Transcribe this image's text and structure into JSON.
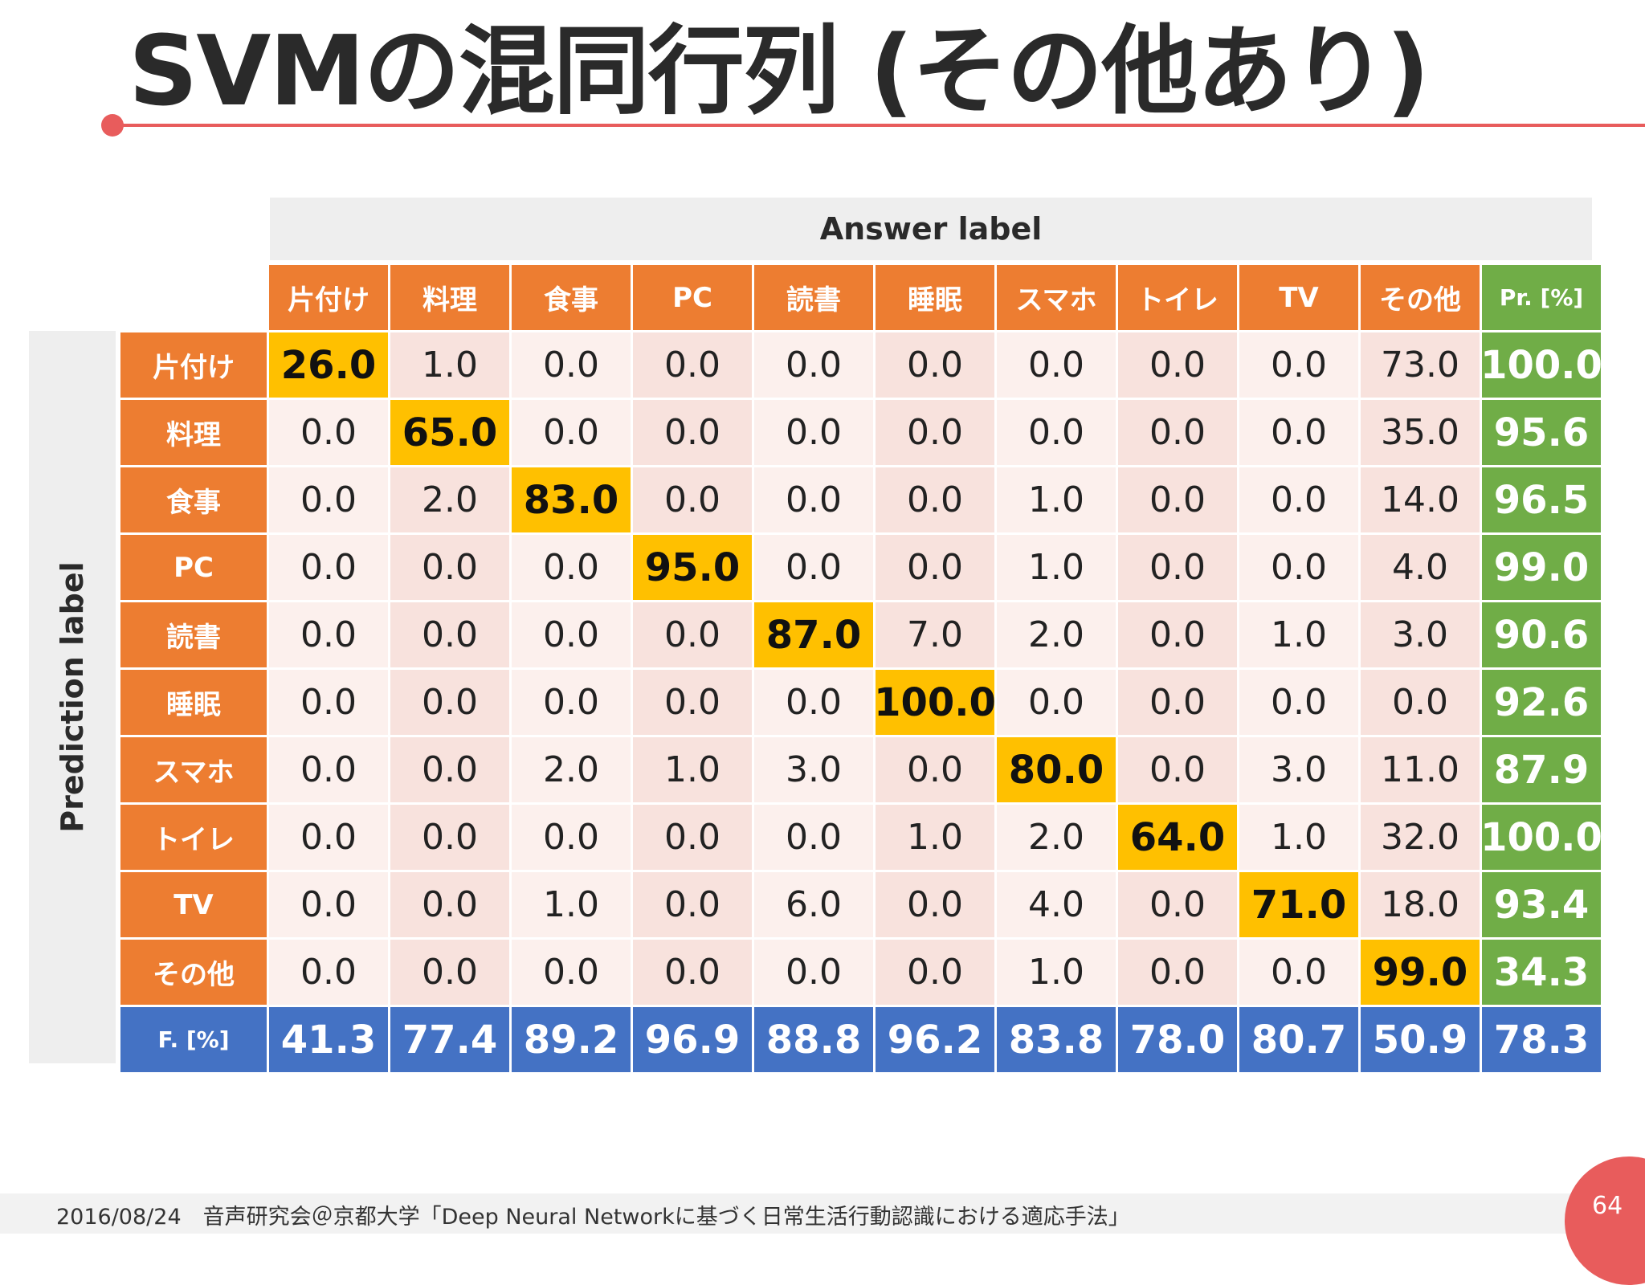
{
  "slide": {
    "title": "SVMの混同行列 (その他あり)",
    "answer_label": "Answer label",
    "prediction_label": "Prediction label",
    "footer": "2016/08/24　音声研究会＠京都大学「Deep Neural Networkに基づく日常生活行動認識における適応手法」",
    "page_number": "64"
  },
  "colors": {
    "class_header": "#ed7d31",
    "precision": "#70ad47",
    "fmeasure": "#4472c4",
    "diagonal": "#ffc000",
    "accent": "#e85c5c"
  },
  "chart_data": {
    "type": "table",
    "classes": [
      "片付け",
      "料理",
      "食事",
      "PC",
      "読書",
      "睡眠",
      "スマホ",
      "トイレ",
      "TV",
      "その他"
    ],
    "precision_header": "Pr. [%]",
    "fmeasure_header": "F. [%]",
    "matrix": [
      [
        "26.0",
        "1.0",
        "0.0",
        "0.0",
        "0.0",
        "0.0",
        "0.0",
        "0.0",
        "0.0",
        "73.0"
      ],
      [
        "0.0",
        "65.0",
        "0.0",
        "0.0",
        "0.0",
        "0.0",
        "0.0",
        "0.0",
        "0.0",
        "35.0"
      ],
      [
        "0.0",
        "2.0",
        "83.0",
        "0.0",
        "0.0",
        "0.0",
        "1.0",
        "0.0",
        "0.0",
        "14.0"
      ],
      [
        "0.0",
        "0.0",
        "0.0",
        "95.0",
        "0.0",
        "0.0",
        "1.0",
        "0.0",
        "0.0",
        "4.0"
      ],
      [
        "0.0",
        "0.0",
        "0.0",
        "0.0",
        "87.0",
        "7.0",
        "2.0",
        "0.0",
        "1.0",
        "3.0"
      ],
      [
        "0.0",
        "0.0",
        "0.0",
        "0.0",
        "0.0",
        "100.0",
        "0.0",
        "0.0",
        "0.0",
        "0.0"
      ],
      [
        "0.0",
        "0.0",
        "2.0",
        "1.0",
        "3.0",
        "0.0",
        "80.0",
        "0.0",
        "3.0",
        "11.0"
      ],
      [
        "0.0",
        "0.0",
        "0.0",
        "0.0",
        "0.0",
        "1.0",
        "2.0",
        "64.0",
        "1.0",
        "32.0"
      ],
      [
        "0.0",
        "0.0",
        "1.0",
        "0.0",
        "6.0",
        "0.0",
        "4.0",
        "0.0",
        "71.0",
        "18.0"
      ],
      [
        "0.0",
        "0.0",
        "0.0",
        "0.0",
        "0.0",
        "0.0",
        "1.0",
        "0.0",
        "0.0",
        "99.0"
      ]
    ],
    "precision": [
      "100.0",
      "95.6",
      "96.5",
      "99.0",
      "90.6",
      "92.6",
      "87.9",
      "100.0",
      "93.4",
      "34.3"
    ],
    "fmeasure": [
      "41.3",
      "77.4",
      "89.2",
      "96.9",
      "88.8",
      "96.2",
      "83.8",
      "78.0",
      "80.7",
      "50.9"
    ],
    "overall_fmeasure": "78.3"
  }
}
